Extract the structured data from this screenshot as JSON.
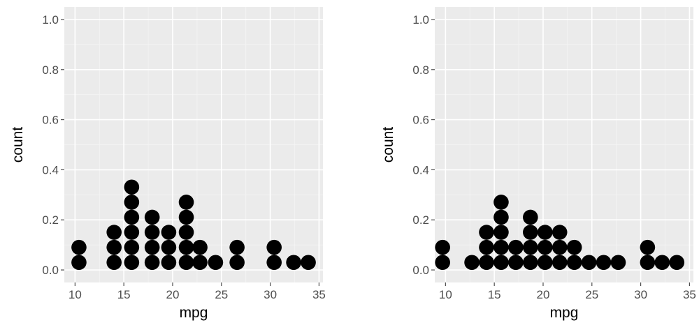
{
  "chart_data": [
    {
      "type": "scatter",
      "style": "dotplot",
      "xlabel": "mpg",
      "ylabel": "count",
      "xlim": [
        8.9,
        35.4
      ],
      "ylim": [
        -0.05,
        1.05
      ],
      "x_ticks": [
        10,
        15,
        20,
        25,
        30,
        35
      ],
      "x_tick_labels": [
        "10",
        "15",
        "20",
        "25",
        "30",
        "35"
      ],
      "y_ticks": [
        0.0,
        0.2,
        0.4,
        0.6,
        0.8,
        1.0
      ],
      "y_tick_labels": [
        "0.0",
        "0.2",
        "0.4",
        "0.6",
        "0.8",
        "1.0"
      ],
      "grid": true,
      "dot_color": "#000000",
      "stacks": [
        {
          "x": 10.4,
          "count": 2
        },
        {
          "x": 14.0,
          "count": 3
        },
        {
          "x": 15.8,
          "count": 6
        },
        {
          "x": 17.9,
          "count": 4
        },
        {
          "x": 19.6,
          "count": 3
        },
        {
          "x": 21.4,
          "count": 5
        },
        {
          "x": 22.8,
          "count": 2
        },
        {
          "x": 24.4,
          "count": 1
        },
        {
          "x": 26.6,
          "count": 2
        },
        {
          "x": 30.4,
          "count": 2
        },
        {
          "x": 32.4,
          "count": 1
        },
        {
          "x": 33.9,
          "count": 1
        }
      ]
    },
    {
      "type": "scatter",
      "style": "dotplot",
      "xlabel": "mpg",
      "ylabel": "count",
      "xlim": [
        8.9,
        35.4
      ],
      "ylim": [
        -0.05,
        1.05
      ],
      "x_ticks": [
        10,
        15,
        20,
        25,
        30,
        35
      ],
      "x_tick_labels": [
        "10",
        "15",
        "20",
        "25",
        "30",
        "35"
      ],
      "y_ticks": [
        0.0,
        0.2,
        0.4,
        0.6,
        0.8,
        1.0
      ],
      "y_tick_labels": [
        "0.0",
        "0.2",
        "0.4",
        "0.6",
        "0.8",
        "1.0"
      ],
      "grid": true,
      "dot_color": "#000000",
      "stacks": [
        {
          "x": 9.7,
          "count": 2
        },
        {
          "x": 12.7,
          "count": 1
        },
        {
          "x": 14.2,
          "count": 3
        },
        {
          "x": 15.7,
          "count": 5
        },
        {
          "x": 17.2,
          "count": 2
        },
        {
          "x": 18.7,
          "count": 4
        },
        {
          "x": 20.2,
          "count": 3
        },
        {
          "x": 21.7,
          "count": 3
        },
        {
          "x": 23.2,
          "count": 2
        },
        {
          "x": 24.7,
          "count": 1
        },
        {
          "x": 26.2,
          "count": 1
        },
        {
          "x": 27.7,
          "count": 1
        },
        {
          "x": 30.7,
          "count": 2
        },
        {
          "x": 32.2,
          "count": 1
        },
        {
          "x": 33.7,
          "count": 1
        }
      ]
    }
  ]
}
